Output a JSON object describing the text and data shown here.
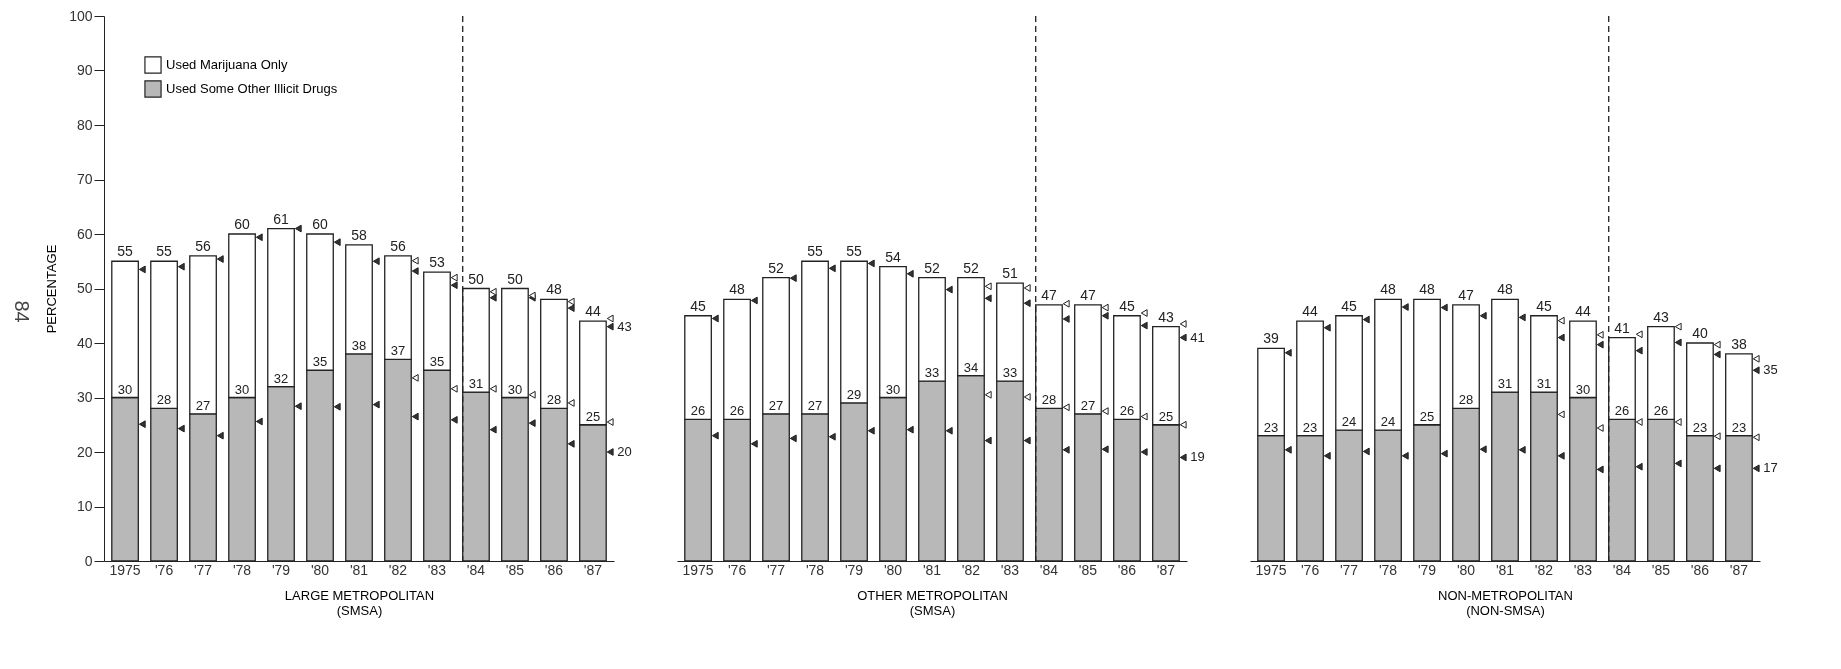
{
  "chart_data": [
    {
      "type": "bar",
      "stacked": true,
      "categories": [
        "1975",
        "'76",
        "'77",
        "'78",
        "'79",
        "'80",
        "'81",
        "'82",
        "'83",
        "'84",
        "'85",
        "'86",
        "'87"
      ],
      "xlabel": "LARGE METROPOLITAN\n(SMSA)",
      "ylabel": "PERCENTAGE",
      "ylim": [
        0,
        100
      ],
      "yticks": [
        0,
        10,
        20,
        30,
        40,
        50,
        60,
        70,
        80,
        90,
        100
      ],
      "legend": "top left",
      "marker": "triangle",
      "totals": [
        "55",
        "55",
        "56",
        "60",
        "61",
        "60",
        "58",
        "56",
        "53",
        "50",
        "50",
        "48",
        "44"
      ],
      "ref_lines": [
        {
          "axis": "x",
          "value": "'84",
          "line_style": "dashed"
        }
      ],
      "annotations": [
        "84"
      ],
      "series": [
        {
          "name": "Used Some Other Illicit Drugs",
          "color": "#b8b8b8",
          "values": [
            30,
            28,
            27,
            30,
            32,
            35,
            38,
            37,
            35,
            31,
            30,
            28,
            25
          ],
          "value_labels": [
            "30",
            "28",
            "27",
            "30",
            "32",
            "35",
            "38",
            "37",
            "35",
            "31",
            "30",
            "28",
            "25"
          ]
        },
        {
          "name": "Used Marijuana Only",
          "color": "#ffffff",
          "values": [
            25,
            27,
            29,
            30,
            29,
            25,
            20,
            19,
            18,
            19,
            20,
            20,
            19
          ]
        },
        {
          "type": "scatter",
          "color": "#333333",
          "values": [
            53.5,
            54,
            55.4,
            59.4,
            61,
            58.5,
            55,
            53.2,
            50.6,
            48.3,
            48.3,
            46.4,
            43
          ],
          "value_labels": [
            null,
            null,
            null,
            null,
            null,
            null,
            null,
            null,
            null,
            null,
            null,
            null,
            "43"
          ]
        },
        {
          "type": "scatter",
          "color": "#333333",
          "values": [
            25.1,
            24.3,
            23,
            25.6,
            28.4,
            28.3,
            28.7,
            26.5,
            25.9,
            24.1,
            25.3,
            21.5,
            20
          ],
          "value_labels": [
            null,
            null,
            null,
            null,
            null,
            null,
            null,
            null,
            null,
            null,
            null,
            null,
            "20"
          ]
        },
        {
          "type": "scatter",
          "color": "#ffffff",
          "values": [
            null,
            null,
            null,
            null,
            null,
            null,
            null,
            55.1,
            52,
            49.4,
            48.7,
            47.6,
            44.5
          ]
        },
        {
          "type": "scatter",
          "color": "#ffffff",
          "values": [
            null,
            null,
            null,
            null,
            null,
            null,
            null,
            33.6,
            31.6,
            31.6,
            30.5,
            29,
            25.5
          ]
        }
      ]
    },
    {
      "type": "bar",
      "stacked": true,
      "categories": [
        "1975",
        "'76",
        "'77",
        "'78",
        "'79",
        "'80",
        "'81",
        "'82",
        "'83",
        "'84",
        "'85",
        "'86",
        "'87"
      ],
      "xlabel": "OTHER METROPOLITAN\n(SMSA)",
      "ylim": [
        0,
        100
      ],
      "tick_labels": "x",
      "marker": "triangle",
      "totals": [
        "45",
        "48",
        "52",
        "55",
        "55",
        "54",
        "52",
        "52",
        "51",
        "47",
        "47",
        "45",
        "43"
      ],
      "ref_lines": [
        {
          "axis": "x",
          "value": "'84",
          "line_style": "dashed"
        }
      ],
      "series": [
        {
          "color": "#b8b8b8",
          "values": [
            26,
            26,
            27,
            27,
            29,
            30,
            33,
            34,
            33,
            28,
            27,
            26,
            25
          ],
          "value_labels": [
            "26",
            "26",
            "27",
            "27",
            "29",
            "30",
            "33",
            "34",
            "33",
            "28",
            "27",
            "26",
            "25"
          ]
        },
        {
          "color": "#ffffff",
          "values": [
            19,
            22,
            25,
            28,
            26,
            24,
            19,
            18,
            18,
            19,
            20,
            19,
            18
          ]
        },
        {
          "type": "scatter",
          "color": "#333333",
          "values": [
            44.5,
            47.8,
            51.9,
            53.7,
            54.6,
            52.7,
            49.8,
            48.2,
            47.3,
            44.4,
            45,
            43.2,
            41
          ],
          "value_labels": [
            null,
            null,
            null,
            null,
            null,
            null,
            null,
            null,
            null,
            null,
            null,
            null,
            "41"
          ]
        },
        {
          "type": "scatter",
          "color": "#333333",
          "values": [
            23,
            21.5,
            22.5,
            22.8,
            23.9,
            24.1,
            23.9,
            22.1,
            22.1,
            20.4,
            20.5,
            20,
            19
          ],
          "value_labels": [
            null,
            null,
            null,
            null,
            null,
            null,
            null,
            null,
            null,
            null,
            null,
            null,
            "19"
          ]
        },
        {
          "type": "scatter",
          "color": "#ffffff",
          "values": [
            null,
            null,
            null,
            null,
            null,
            null,
            null,
            50.4,
            50.1,
            47.2,
            46.5,
            45.5,
            43.5
          ]
        },
        {
          "type": "scatter",
          "color": "#ffffff",
          "values": [
            null,
            null,
            null,
            null,
            null,
            null,
            null,
            30.5,
            30.1,
            28.2,
            27.5,
            26.5,
            25
          ]
        }
      ]
    },
    {
      "type": "bar",
      "stacked": true,
      "categories": [
        "1975",
        "'76",
        "'77",
        "'78",
        "'79",
        "'80",
        "'81",
        "'82",
        "'83",
        "'84",
        "'85",
        "'86",
        "'87"
      ],
      "xlabel": "NON-METROPOLITAN\n(NON-SMSA)",
      "ylim": [
        0,
        100
      ],
      "tick_labels": "x",
      "marker": "triangle",
      "totals": [
        "39",
        "44",
        "45",
        "48",
        "48",
        "47",
        "48",
        "45",
        "44",
        "41",
        "43",
        "40",
        "38"
      ],
      "ref_lines": [
        {
          "axis": "x",
          "value": "'84",
          "line_style": "dashed"
        }
      ],
      "series": [
        {
          "color": "#b8b8b8",
          "values": [
            23,
            23,
            24,
            24,
            25,
            28,
            31,
            31,
            30,
            26,
            26,
            23,
            23
          ],
          "value_labels": [
            "23",
            "23",
            "24",
            "24",
            "25",
            "28",
            "31",
            "31",
            "30",
            "26",
            "26",
            "23",
            "23"
          ]
        },
        {
          "color": "#ffffff",
          "values": [
            16,
            21,
            21,
            24,
            23,
            19,
            17,
            14,
            14,
            15,
            17,
            17,
            15
          ]
        },
        {
          "type": "scatter",
          "color": "#333333",
          "values": [
            38.2,
            42.8,
            44.3,
            46.6,
            46.5,
            45,
            44.7,
            41,
            39.7,
            38.6,
            40.1,
            37.9,
            35
          ],
          "value_labels": [
            null,
            null,
            null,
            null,
            null,
            null,
            null,
            null,
            null,
            null,
            null,
            null,
            "35"
          ]
        },
        {
          "type": "scatter",
          "color": "#333333",
          "values": [
            20.4,
            19.3,
            20.1,
            19.3,
            19.7,
            20.5,
            20.4,
            19.3,
            16.8,
            17.3,
            17.9,
            17,
            17
          ],
          "value_labels": [
            null,
            null,
            null,
            null,
            null,
            null,
            null,
            null,
            null,
            null,
            null,
            null,
            "17"
          ]
        },
        {
          "type": "scatter",
          "color": "#ffffff",
          "values": [
            null,
            null,
            null,
            null,
            null,
            null,
            null,
            44.1,
            41.5,
            41.6,
            43,
            39.7,
            37.1
          ]
        },
        {
          "type": "scatter",
          "color": "#ffffff",
          "values": [
            null,
            null,
            null,
            null,
            null,
            null,
            null,
            26.9,
            24.4,
            25.5,
            25.5,
            22.9,
            22.7
          ]
        }
      ]
    }
  ]
}
